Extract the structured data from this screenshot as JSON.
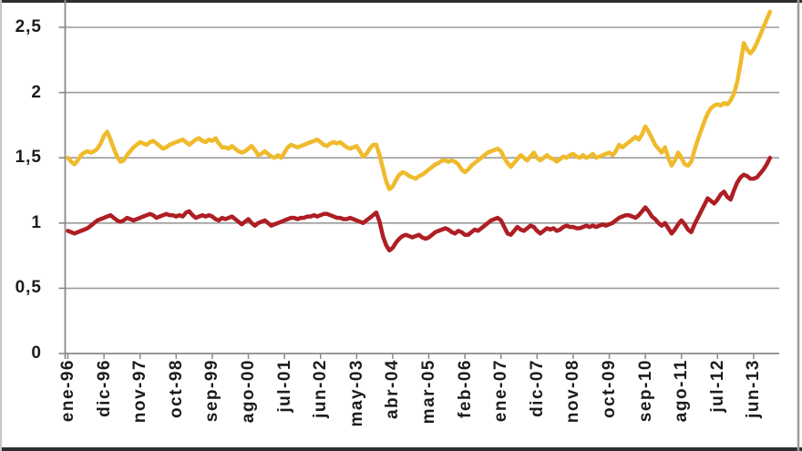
{
  "chart_data": {
    "type": "line",
    "title": "",
    "legend": "none",
    "grid": true,
    "colors": {
      "background": "#FFFFFF",
      "gridline": "#9B9B9B",
      "axis": "#8A8A8A",
      "label_text": "#1C1C1C",
      "frame_dark": "#2E2E2E",
      "frame_light": "#C6C6C6",
      "frame_side": "#9C9C9C"
    },
    "x_axis": {
      "unit": "month",
      "start": "ene-96",
      "end_of_data": "nov-13",
      "tick_interval_months": 11,
      "tick_labels": [
        "ene-96",
        "dic-96",
        "nov-97",
        "oct-98",
        "sep-99",
        "ago-00",
        "jul-01",
        "jun-02",
        "may-03",
        "abr-04",
        "mar-05",
        "feb-06",
        "ene-07",
        "dic-07",
        "nov-08",
        "oct-09",
        "sep-10",
        "ago-11",
        "jul-12",
        "jun-13"
      ]
    },
    "y_axis": {
      "tick_labels": [
        "0",
        "0,5",
        "1",
        "1,5",
        "2",
        "2,5"
      ],
      "tick_values": [
        0,
        0.5,
        1,
        1.5,
        2,
        2.5
      ],
      "ylim": [
        0,
        2.71
      ],
      "gridline_step": 0.5
    },
    "series": [
      {
        "name": "yellow-line",
        "color": "#EFBA2C",
        "values": [
          1.5,
          1.47,
          1.45,
          1.48,
          1.52,
          1.54,
          1.55,
          1.54,
          1.55,
          1.57,
          1.61,
          1.67,
          1.7,
          1.64,
          1.57,
          1.51,
          1.47,
          1.48,
          1.52,
          1.55,
          1.58,
          1.6,
          1.62,
          1.61,
          1.6,
          1.62,
          1.63,
          1.61,
          1.59,
          1.57,
          1.58,
          1.6,
          1.61,
          1.62,
          1.63,
          1.64,
          1.62,
          1.6,
          1.62,
          1.64,
          1.65,
          1.63,
          1.62,
          1.64,
          1.63,
          1.65,
          1.61,
          1.58,
          1.58,
          1.57,
          1.59,
          1.57,
          1.55,
          1.54,
          1.55,
          1.57,
          1.59,
          1.56,
          1.52,
          1.53,
          1.55,
          1.53,
          1.51,
          1.5,
          1.52,
          1.5,
          1.54,
          1.58,
          1.6,
          1.59,
          1.58,
          1.59,
          1.6,
          1.61,
          1.62,
          1.63,
          1.64,
          1.62,
          1.6,
          1.59,
          1.61,
          1.62,
          1.61,
          1.62,
          1.6,
          1.58,
          1.57,
          1.58,
          1.59,
          1.55,
          1.51,
          1.53,
          1.57,
          1.6,
          1.6,
          1.52,
          1.42,
          1.32,
          1.26,
          1.28,
          1.33,
          1.37,
          1.39,
          1.38,
          1.36,
          1.35,
          1.34,
          1.36,
          1.37,
          1.39,
          1.41,
          1.43,
          1.45,
          1.46,
          1.48,
          1.48,
          1.47,
          1.48,
          1.47,
          1.45,
          1.41,
          1.39,
          1.41,
          1.44,
          1.46,
          1.48,
          1.5,
          1.52,
          1.54,
          1.55,
          1.56,
          1.57,
          1.55,
          1.5,
          1.46,
          1.43,
          1.46,
          1.49,
          1.52,
          1.5,
          1.48,
          1.51,
          1.54,
          1.5,
          1.48,
          1.5,
          1.52,
          1.5,
          1.49,
          1.47,
          1.49,
          1.51,
          1.5,
          1.52,
          1.53,
          1.51,
          1.5,
          1.52,
          1.5,
          1.51,
          1.53,
          1.5,
          1.51,
          1.52,
          1.53,
          1.54,
          1.52,
          1.55,
          1.6,
          1.58,
          1.6,
          1.62,
          1.64,
          1.66,
          1.64,
          1.68,
          1.74,
          1.7,
          1.65,
          1.6,
          1.57,
          1.54,
          1.58,
          1.5,
          1.44,
          1.48,
          1.54,
          1.5,
          1.45,
          1.44,
          1.47,
          1.56,
          1.64,
          1.71,
          1.78,
          1.84,
          1.88,
          1.9,
          1.91,
          1.9,
          1.92,
          1.91,
          1.94,
          1.99,
          2.08,
          2.22,
          2.38,
          2.33,
          2.3,
          2.33,
          2.38,
          2.44,
          2.5,
          2.56,
          2.62
        ]
      },
      {
        "name": "dark-red-line",
        "color": "#AE1E24",
        "values": [
          0.94,
          0.93,
          0.92,
          0.93,
          0.94,
          0.95,
          0.96,
          0.98,
          1.0,
          1.02,
          1.03,
          1.04,
          1.05,
          1.06,
          1.04,
          1.02,
          1.01,
          1.02,
          1.04,
          1.03,
          1.02,
          1.03,
          1.04,
          1.05,
          1.06,
          1.07,
          1.06,
          1.04,
          1.05,
          1.06,
          1.07,
          1.06,
          1.06,
          1.05,
          1.06,
          1.05,
          1.08,
          1.09,
          1.06,
          1.04,
          1.05,
          1.06,
          1.05,
          1.06,
          1.05,
          1.03,
          1.02,
          1.04,
          1.03,
          1.04,
          1.05,
          1.03,
          1.01,
          0.99,
          1.01,
          1.03,
          1.0,
          0.98,
          1.0,
          1.01,
          1.02,
          1.0,
          0.98,
          0.99,
          1.0,
          1.01,
          1.02,
          1.03,
          1.04,
          1.04,
          1.03,
          1.04,
          1.04,
          1.05,
          1.05,
          1.06,
          1.05,
          1.06,
          1.07,
          1.07,
          1.06,
          1.05,
          1.04,
          1.04,
          1.03,
          1.03,
          1.04,
          1.03,
          1.02,
          1.01,
          1.0,
          1.02,
          1.04,
          1.06,
          1.08,
          1.01,
          0.9,
          0.83,
          0.79,
          0.81,
          0.85,
          0.88,
          0.9,
          0.91,
          0.9,
          0.89,
          0.9,
          0.91,
          0.89,
          0.88,
          0.89,
          0.91,
          0.93,
          0.94,
          0.95,
          0.96,
          0.95,
          0.93,
          0.92,
          0.94,
          0.93,
          0.91,
          0.91,
          0.93,
          0.95,
          0.94,
          0.96,
          0.98,
          1.0,
          1.02,
          1.03,
          1.04,
          1.02,
          0.97,
          0.92,
          0.91,
          0.94,
          0.97,
          0.95,
          0.94,
          0.96,
          0.98,
          0.97,
          0.94,
          0.92,
          0.94,
          0.96,
          0.95,
          0.96,
          0.94,
          0.95,
          0.97,
          0.98,
          0.97,
          0.97,
          0.96,
          0.96,
          0.97,
          0.98,
          0.97,
          0.98,
          0.97,
          0.98,
          0.99,
          0.98,
          0.99,
          1.0,
          1.02,
          1.04,
          1.05,
          1.06,
          1.06,
          1.05,
          1.04,
          1.06,
          1.09,
          1.12,
          1.09,
          1.05,
          1.03,
          1.0,
          0.98,
          1.0,
          0.96,
          0.92,
          0.95,
          0.99,
          1.02,
          0.99,
          0.95,
          0.93,
          0.99,
          1.04,
          1.09,
          1.14,
          1.19,
          1.17,
          1.15,
          1.18,
          1.22,
          1.24,
          1.2,
          1.18,
          1.25,
          1.31,
          1.35,
          1.37,
          1.36,
          1.34,
          1.34,
          1.35,
          1.38,
          1.41,
          1.45,
          1.5
        ]
      }
    ]
  }
}
